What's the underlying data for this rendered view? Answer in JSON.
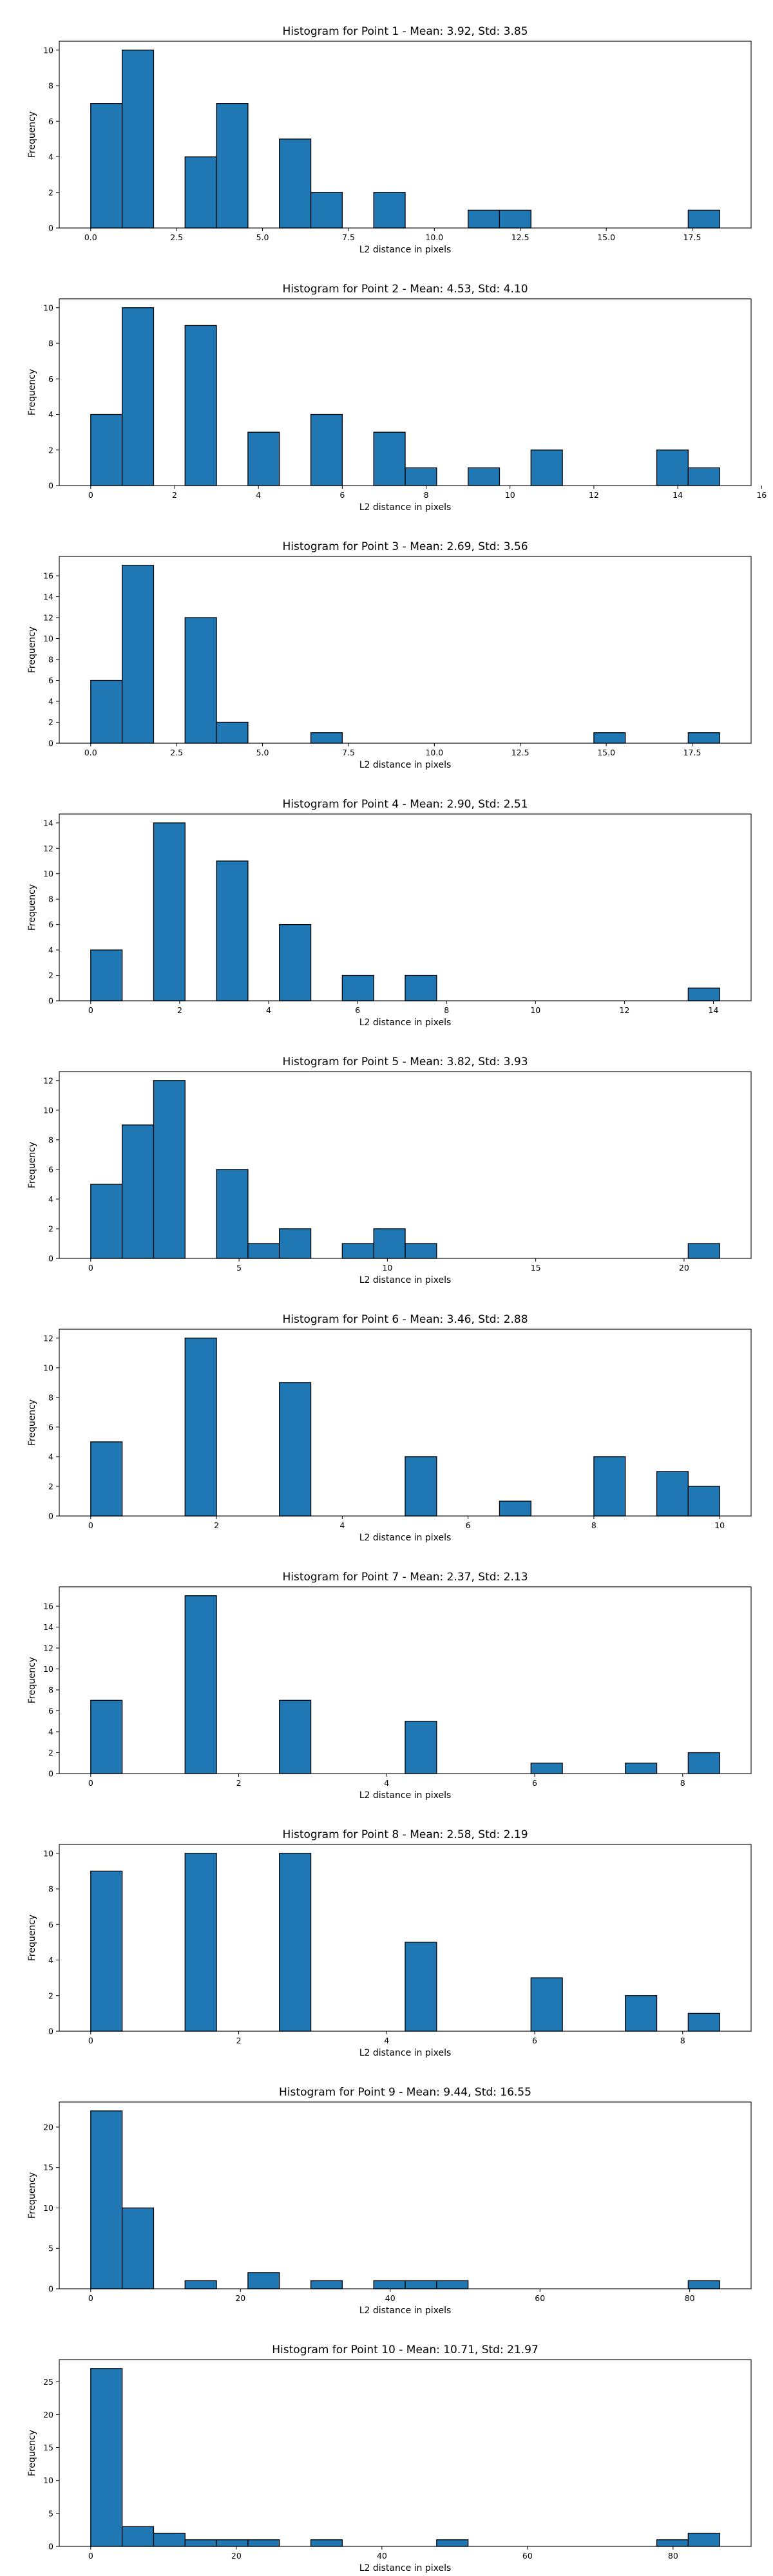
{
  "chart_data": [
    {
      "type": "bar",
      "title": "Histogram for Point 1 - Mean: 3.92, Std: 3.85",
      "xlabel": "L2 distance in pixels",
      "ylabel": "Frequency",
      "bin_edges": [
        0.0,
        0.915,
        1.83,
        2.745,
        3.66,
        4.575,
        5.49,
        6.405,
        7.32,
        8.235,
        9.15,
        10.065,
        10.98,
        11.895,
        12.81,
        13.725,
        14.64,
        15.555,
        16.47,
        17.385,
        18.3
      ],
      "counts": [
        7,
        10,
        0,
        4,
        7,
        0,
        5,
        2,
        0,
        2,
        0,
        0,
        1,
        1,
        0,
        0,
        0,
        0,
        0,
        1
      ],
      "xlim": [
        -0.915,
        19.215
      ],
      "ylim": [
        0,
        10.5
      ],
      "xticks": [
        0.0,
        2.5,
        5.0,
        7.5,
        10.0,
        12.5,
        15.0,
        17.5
      ],
      "xtick_labels": [
        "0.0",
        "2.5",
        "5.0",
        "7.5",
        "10.0",
        "12.5",
        "15.0",
        "17.5"
      ],
      "yticks": [
        0,
        2,
        4,
        6,
        8,
        10
      ],
      "ytick_labels": [
        "0",
        "2",
        "4",
        "6",
        "8",
        "10"
      ]
    },
    {
      "type": "bar",
      "title": "Histogram for Point 2 - Mean: 4.53, Std: 4.10",
      "xlabel": "L2 distance in pixels",
      "ylabel": "Frequency",
      "bin_edges": [
        0.0,
        0.75,
        1.5,
        2.25,
        3.0,
        3.75,
        4.5,
        5.25,
        6.0,
        6.75,
        7.5,
        8.25,
        9.0,
        9.75,
        10.5,
        11.25,
        12.0,
        12.75,
        13.5,
        14.25,
        15.0
      ],
      "counts": [
        4,
        10,
        0,
        9,
        0,
        3,
        0,
        4,
        0,
        3,
        1,
        0,
        1,
        0,
        2,
        0,
        0,
        0,
        2,
        1
      ],
      "xlim": [
        -0.75,
        15.75
      ],
      "ylim": [
        0,
        10.5
      ],
      "xticks": [
        0,
        2,
        4,
        6,
        8,
        10,
        12,
        14,
        16
      ],
      "xtick_labels": [
        "0",
        "2",
        "4",
        "6",
        "8",
        "10",
        "12",
        "14",
        "16"
      ],
      "yticks": [
        0,
        2,
        4,
        6,
        8,
        10
      ],
      "ytick_labels": [
        "0",
        "2",
        "4",
        "6",
        "8",
        "10"
      ]
    },
    {
      "type": "bar",
      "title": "Histogram for Point 3 - Mean: 2.69, Std: 3.56",
      "xlabel": "L2 distance in pixels",
      "ylabel": "Frequency",
      "bin_edges": [
        0.0,
        0.915,
        1.83,
        2.745,
        3.66,
        4.575,
        5.49,
        6.405,
        7.32,
        8.235,
        9.15,
        10.065,
        10.98,
        11.895,
        12.81,
        13.725,
        14.64,
        15.555,
        16.47,
        17.385,
        18.3
      ],
      "counts": [
        6,
        17,
        0,
        12,
        2,
        0,
        0,
        1,
        0,
        0,
        0,
        0,
        0,
        0,
        0,
        0,
        1,
        0,
        0,
        1
      ],
      "xlim": [
        -0.915,
        19.215
      ],
      "ylim": [
        0,
        17.85
      ],
      "xticks": [
        0.0,
        2.5,
        5.0,
        7.5,
        10.0,
        12.5,
        15.0,
        17.5
      ],
      "xtick_labels": [
        "0.0",
        "2.5",
        "5.0",
        "7.5",
        "10.0",
        "12.5",
        "15.0",
        "17.5"
      ],
      "yticks": [
        0,
        2,
        4,
        6,
        8,
        10,
        12,
        14,
        16
      ],
      "ytick_labels": [
        "0",
        "2",
        "4",
        "6",
        "8",
        "10",
        "12",
        "14",
        "16"
      ]
    },
    {
      "type": "bar",
      "title": "Histogram for Point 4 - Mean: 2.90, Std: 2.51",
      "xlabel": "L2 distance in pixels",
      "ylabel": "Frequency",
      "bin_edges": [
        0.0,
        0.707,
        1.414,
        2.121,
        2.828,
        3.535,
        4.242,
        4.949,
        5.656,
        6.363,
        7.07,
        7.777,
        8.484,
        9.191,
        9.898,
        10.605,
        11.312,
        12.019,
        12.726,
        13.433,
        14.14
      ],
      "counts": [
        4,
        0,
        14,
        0,
        11,
        0,
        6,
        0,
        2,
        0,
        2,
        0,
        0,
        0,
        0,
        0,
        0,
        0,
        0,
        1
      ],
      "xlim": [
        -0.707,
        14.847
      ],
      "ylim": [
        0,
        14.7
      ],
      "xticks": [
        0,
        2,
        4,
        6,
        8,
        10,
        12,
        14
      ],
      "xtick_labels": [
        "0",
        "2",
        "4",
        "6",
        "8",
        "10",
        "12",
        "14"
      ],
      "yticks": [
        0,
        2,
        4,
        6,
        8,
        10,
        12,
        14
      ],
      "ytick_labels": [
        "0",
        "2",
        "4",
        "6",
        "8",
        "10",
        "12",
        "14"
      ]
    },
    {
      "type": "bar",
      "title": "Histogram for Point 5 - Mean: 3.82, Std: 3.93",
      "xlabel": "L2 distance in pixels",
      "ylabel": "Frequency",
      "bin_edges": [
        0.0,
        1.06,
        2.12,
        3.18,
        4.24,
        5.3,
        6.36,
        7.42,
        8.48,
        9.54,
        10.6,
        11.66,
        12.72,
        13.78,
        14.84,
        15.9,
        16.96,
        18.02,
        19.08,
        20.14,
        21.2
      ],
      "counts": [
        5,
        9,
        12,
        0,
        6,
        1,
        2,
        0,
        1,
        2,
        1,
        0,
        0,
        0,
        0,
        0,
        0,
        0,
        0,
        1
      ],
      "xlim": [
        -1.06,
        22.26
      ],
      "ylim": [
        0,
        12.6
      ],
      "xticks": [
        0,
        5,
        10,
        15,
        20
      ],
      "xtick_labels": [
        "0",
        "5",
        "10",
        "15",
        "20"
      ],
      "yticks": [
        0,
        2,
        4,
        6,
        8,
        10,
        12
      ],
      "ytick_labels": [
        "0",
        "2",
        "4",
        "6",
        "8",
        "10",
        "12"
      ]
    },
    {
      "type": "bar",
      "title": "Histogram for Point 6 - Mean: 3.46, Std: 2.88",
      "xlabel": "L2 distance in pixels",
      "ylabel": "Frequency",
      "bin_edges": [
        0.0,
        0.5,
        1.0,
        1.5,
        2.0,
        2.5,
        3.0,
        3.5,
        4.0,
        4.5,
        5.0,
        5.5,
        6.0,
        6.5,
        7.0,
        7.5,
        8.0,
        8.5,
        9.0,
        9.5,
        10.0
      ],
      "counts": [
        5,
        0,
        0,
        12,
        0,
        0,
        9,
        0,
        0,
        0,
        4,
        0,
        0,
        1,
        0,
        0,
        4,
        0,
        3,
        2
      ],
      "xlim": [
        -0.5,
        10.5
      ],
      "ylim": [
        0,
        12.6
      ],
      "xticks": [
        0,
        2,
        4,
        6,
        8,
        10
      ],
      "xtick_labels": [
        "0",
        "2",
        "4",
        "6",
        "8",
        "10"
      ],
      "yticks": [
        0,
        2,
        4,
        6,
        8,
        10,
        12
      ],
      "ytick_labels": [
        "0",
        "2",
        "4",
        "6",
        "8",
        "10",
        "12"
      ]
    },
    {
      "type": "bar",
      "title": "Histogram for Point 7 - Mean: 2.37, Std: 2.13",
      "xlabel": "L2 distance in pixels",
      "ylabel": "Frequency",
      "bin_edges": [
        0.0,
        0.425,
        0.85,
        1.275,
        1.7,
        2.125,
        2.55,
        2.975,
        3.4,
        3.825,
        4.25,
        4.675,
        5.1,
        5.525,
        5.95,
        6.375,
        6.8,
        7.225,
        7.65,
        8.075,
        8.5
      ],
      "counts": [
        7,
        0,
        0,
        17,
        0,
        0,
        7,
        0,
        0,
        0,
        5,
        0,
        0,
        0,
        1,
        0,
        0,
        1,
        0,
        2
      ],
      "xlim": [
        -0.425,
        8.925
      ],
      "ylim": [
        0,
        17.85
      ],
      "xticks": [
        0,
        2,
        4,
        6,
        8
      ],
      "xtick_labels": [
        "0",
        "2",
        "4",
        "6",
        "8"
      ],
      "yticks": [
        0,
        2,
        4,
        6,
        8,
        10,
        12,
        14,
        16
      ],
      "ytick_labels": [
        "0",
        "2",
        "4",
        "6",
        "8",
        "10",
        "12",
        "14",
        "16"
      ]
    },
    {
      "type": "bar",
      "title": "Histogram for Point 8 - Mean: 2.58, Std: 2.19",
      "xlabel": "L2 distance in pixels",
      "ylabel": "Frequency",
      "bin_edges": [
        0.0,
        0.425,
        0.85,
        1.275,
        1.7,
        2.125,
        2.55,
        2.975,
        3.4,
        3.825,
        4.25,
        4.675,
        5.1,
        5.525,
        5.95,
        6.375,
        6.8,
        7.225,
        7.65,
        8.075,
        8.5
      ],
      "counts": [
        9,
        0,
        0,
        10,
        0,
        0,
        10,
        0,
        0,
        0,
        5,
        0,
        0,
        0,
        3,
        0,
        0,
        2,
        0,
        1
      ],
      "xlim": [
        -0.425,
        8.925
      ],
      "ylim": [
        0,
        10.5
      ],
      "xticks": [
        0,
        2,
        4,
        6,
        8
      ],
      "xtick_labels": [
        "0",
        "2",
        "4",
        "6",
        "8"
      ],
      "yticks": [
        0,
        2,
        4,
        6,
        8,
        10
      ],
      "ytick_labels": [
        "0",
        "2",
        "4",
        "6",
        "8",
        "10"
      ]
    },
    {
      "type": "bar",
      "title": "Histogram for Point 9 - Mean: 9.44, Std: 16.55",
      "xlabel": "L2 distance in pixels",
      "ylabel": "Frequency",
      "bin_edges": [
        0.0,
        4.2,
        8.4,
        12.6,
        16.8,
        21.0,
        25.2,
        29.4,
        33.6,
        37.8,
        42.0,
        46.2,
        50.4,
        54.6,
        58.8,
        63.0,
        67.2,
        71.4,
        75.6,
        79.8,
        84.0
      ],
      "counts": [
        22,
        10,
        0,
        1,
        0,
        2,
        0,
        1,
        0,
        1,
        1,
        1,
        0,
        0,
        0,
        0,
        0,
        0,
        0,
        1
      ],
      "xlim": [
        -4.2,
        88.2
      ],
      "ylim": [
        0,
        23.1
      ],
      "xticks": [
        0,
        20,
        40,
        60,
        80
      ],
      "xtick_labels": [
        "0",
        "20",
        "40",
        "60",
        "80"
      ],
      "yticks": [
        0,
        5,
        10,
        15,
        20
      ],
      "ytick_labels": [
        "0",
        "5",
        "10",
        "15",
        "20"
      ]
    },
    {
      "type": "bar",
      "title": "Histogram for Point 10 - Mean: 10.71, Std: 21.97",
      "xlabel": "L2 distance in pixels",
      "ylabel": "Frequency",
      "bin_edges": [
        0.0,
        4.32,
        8.64,
        12.96,
        17.28,
        21.6,
        25.92,
        30.24,
        34.56,
        38.88,
        43.2,
        47.52,
        51.84,
        56.16,
        60.48,
        64.8,
        69.12,
        73.44,
        77.76,
        82.08,
        86.4
      ],
      "counts": [
        27,
        3,
        2,
        1,
        1,
        1,
        0,
        1,
        0,
        0,
        0,
        1,
        0,
        0,
        0,
        0,
        0,
        0,
        1,
        2
      ],
      "xlim": [
        -4.32,
        90.72
      ],
      "ylim": [
        0,
        28.35
      ],
      "xticks": [
        0,
        20,
        40,
        60,
        80
      ],
      "xtick_labels": [
        "0",
        "20",
        "40",
        "60",
        "80"
      ],
      "yticks": [
        0,
        5,
        10,
        15,
        20,
        25
      ],
      "ytick_labels": [
        "0",
        "5",
        "10",
        "15",
        "20",
        "25"
      ]
    }
  ],
  "colors": {
    "bar_fill": "#1f77b4",
    "bar_edge": "#000000",
    "axes": "#000000",
    "background": "#ffffff"
  }
}
